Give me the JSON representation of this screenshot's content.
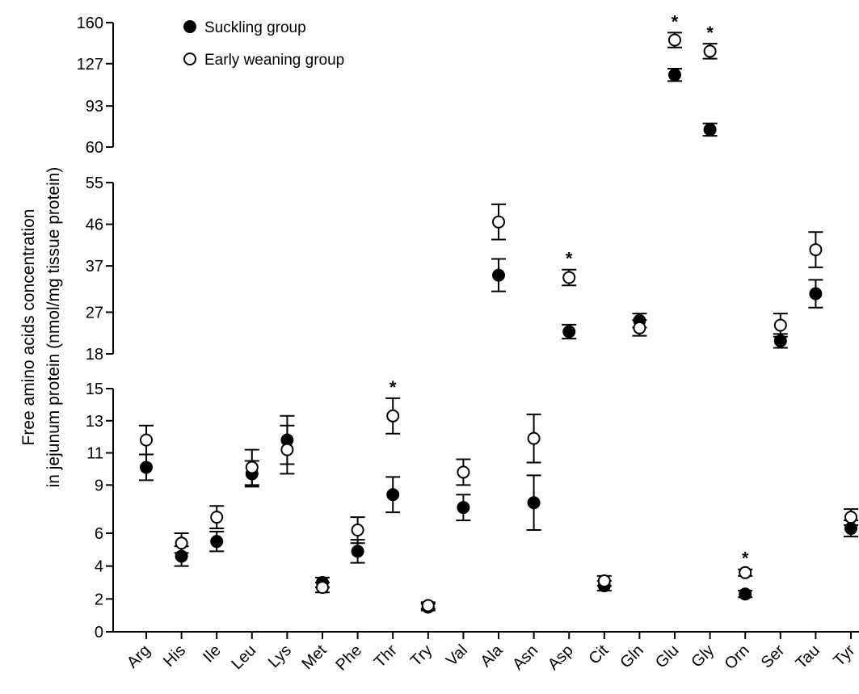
{
  "chart_data": {
    "type": "scatter",
    "ylabel_lines": [
      "Free amino acids concentration",
      "in jejunum protein (nmol/mg tissue protein)"
    ],
    "categories": [
      "Arg",
      "His",
      "Ile",
      "Leu",
      "Lys",
      "Met",
      "Phe",
      "Thr",
      "Try",
      "Val",
      "Ala",
      "Asn",
      "Asp",
      "Cit",
      "Gln",
      "Glu",
      "Gly",
      "Orn",
      "Ser",
      "Tau",
      "Tyr"
    ],
    "y_ticks": [
      {
        "label": "0",
        "value": 0
      },
      {
        "label": "2",
        "value": 2
      },
      {
        "label": "4",
        "value": 4
      },
      {
        "label": "6",
        "value": 6
      },
      {
        "label": "9",
        "value": 9
      },
      {
        "label": "11",
        "value": 11
      },
      {
        "label": "13",
        "value": 13
      },
      {
        "label": "15",
        "value": 15
      },
      {
        "label": "18",
        "value": 18
      },
      {
        "label": "27",
        "value": 27
      },
      {
        "label": "37",
        "value": 37
      },
      {
        "label": "46",
        "value": 46
      },
      {
        "label": "55",
        "value": 55
      },
      {
        "label": "60",
        "value": 60
      },
      {
        "label": "93",
        "value": 93
      },
      {
        "label": "127",
        "value": 127
      },
      {
        "label": "160",
        "value": 160
      }
    ],
    "legend": {
      "position": "top-left"
    },
    "series": [
      {
        "name": "Suckling group",
        "marker": "filled-circle",
        "values": [
          10.1,
          4.6,
          5.5,
          9.7,
          11.8,
          3.0,
          4.9,
          8.4,
          1.5,
          7.6,
          35.0,
          7.9,
          22.8,
          2.8,
          25.2,
          118.0,
          74.0,
          2.3,
          20.8,
          31.0,
          6.3
        ],
        "errors": [
          0.8,
          0.6,
          0.6,
          0.8,
          1.5,
          0.3,
          0.7,
          1.1,
          0.2,
          0.8,
          3.5,
          1.7,
          1.5,
          0.3,
          1.5,
          5.0,
          5.0,
          0.2,
          1.5,
          3.0,
          0.5
        ]
      },
      {
        "name": "Early weaning group",
        "marker": "open-circle",
        "values": [
          11.8,
          5.4,
          7.0,
          10.1,
          11.2,
          2.7,
          6.2,
          13.3,
          1.6,
          9.8,
          46.5,
          11.9,
          34.5,
          3.1,
          23.6,
          146.0,
          137.0,
          3.6,
          24.2,
          40.5,
          7.0
        ],
        "errors": [
          0.9,
          0.6,
          0.7,
          1.1,
          1.5,
          0.3,
          0.8,
          1.1,
          0.2,
          0.8,
          3.8,
          1.5,
          1.7,
          0.3,
          1.7,
          6.0,
          6.0,
          0.2,
          2.5,
          3.8,
          0.5
        ]
      }
    ],
    "significance_markers": [
      {
        "category": "Thr",
        "label": "*"
      },
      {
        "category": "Asp",
        "label": "*"
      },
      {
        "category": "Glu",
        "label": "*"
      },
      {
        "category": "Gly",
        "label": "*"
      },
      {
        "category": "Orn",
        "label": "*"
      }
    ]
  }
}
